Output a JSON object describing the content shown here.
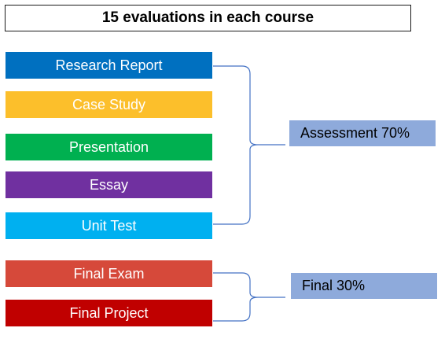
{
  "title": "15 evaluations in each course",
  "assessment_items": [
    {
      "label": "Research Report",
      "color": "#0070c0"
    },
    {
      "label": "Case Study",
      "color": "#fcbf2b"
    },
    {
      "label": "Presentation",
      "color": "#00b050"
    },
    {
      "label": "Essay",
      "color": "#7030a0"
    },
    {
      "label": "Unit Test",
      "color": "#00b0f0"
    }
  ],
  "final_items": [
    {
      "label": "Final Exam",
      "color": "#d6493a"
    },
    {
      "label": "Final Project",
      "color": "#c00000"
    }
  ],
  "groups": {
    "assessment_label": "Assessment 70%",
    "final_label": "Final 30%",
    "label_color": "#8eaadb",
    "bracket_color": "#4472c4"
  }
}
